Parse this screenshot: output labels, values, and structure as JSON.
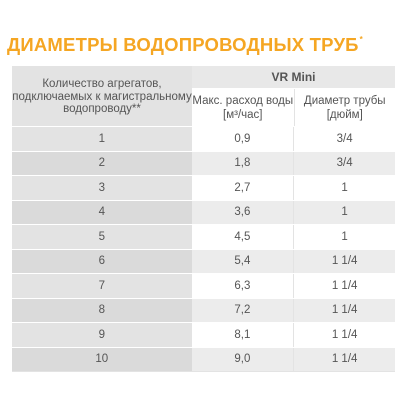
{
  "title": {
    "text": "ДИАМЕТРЫ ВОДОПРОВОДНЫХ ТРУБ",
    "footnote_mark": "*"
  },
  "colors": {
    "title": "#f5a623",
    "header_bg": "#e3e3e3",
    "row_shade": "#ececec"
  },
  "table": {
    "col1_header": "Количество агрегатов, подключаемых к магистральному водопроводу**",
    "group_header": "VR Mini",
    "col2_header": "Макс. расход воды [м³/час]",
    "col3_header": "Диаметр трубы [дюйм]",
    "rows": [
      {
        "count": "1",
        "flow": "0,9",
        "diameter": "3/4"
      },
      {
        "count": "2",
        "flow": "1,8",
        "diameter": "3/4"
      },
      {
        "count": "3",
        "flow": "2,7",
        "diameter": "1"
      },
      {
        "count": "4",
        "flow": "3,6",
        "diameter": "1"
      },
      {
        "count": "5",
        "flow": "4,5",
        "diameter": "1"
      },
      {
        "count": "6",
        "flow": "5,4",
        "diameter": "1 1/4"
      },
      {
        "count": "7",
        "flow": "6,3",
        "diameter": "1 1/4"
      },
      {
        "count": "8",
        "flow": "7,2",
        "diameter": "1 1/4"
      },
      {
        "count": "9",
        "flow": "8,1",
        "diameter": "1 1/4"
      },
      {
        "count": "10",
        "flow": "9,0",
        "diameter": "1 1/4"
      }
    ]
  }
}
